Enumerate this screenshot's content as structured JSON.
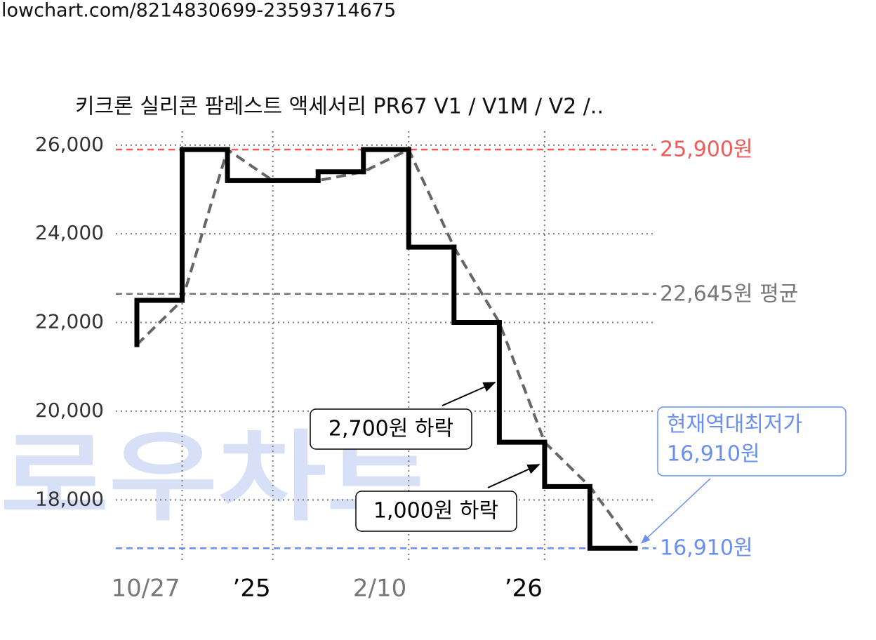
{
  "url": "lowchart.com/8214830699-23593714675",
  "watermark": "로우차트",
  "chart_data": {
    "type": "step",
    "title": "키크론 실리콘 팜레스트 액세서리 PR67 V1 / V1M / V2 /..",
    "x": [
      0,
      1,
      2,
      3,
      4,
      5,
      6,
      7,
      8,
      9,
      10,
      11
    ],
    "series": [
      {
        "color": "#000000",
        "trend_color": "#666666",
        "values": [
          21500,
          22500,
          25900,
          25200,
          25200,
          25400,
          25900,
          23700,
          22000,
          19300,
          18300,
          16910
        ]
      }
    ],
    "xlim": [
      0,
      11
    ],
    "xticks": [
      {
        "value": 1,
        "label": "10/27"
      },
      {
        "value": 3,
        "label": "’25"
      },
      {
        "value": 6,
        "label": "2/10"
      },
      {
        "value": 9,
        "label": "’26"
      }
    ],
    "xtick_colors": [
      "#777777",
      "#000000",
      "#777777",
      "#000000"
    ],
    "ylim": [
      16000,
      27000
    ],
    "yticks": [
      {
        "value": 18000,
        "label": "18,000"
      },
      {
        "value": 20000,
        "label": "20,000"
      },
      {
        "value": 22000,
        "label": "22,000"
      },
      {
        "value": 24000,
        "label": "24,000"
      },
      {
        "value": 26000,
        "label": "26,000"
      }
    ],
    "grid": true,
    "reference_lines": [
      {
        "value": 25900,
        "label": "25,900원",
        "color": "#f05a5a"
      },
      {
        "value": 22645,
        "label": "22,645원 평균",
        "color": "#777777"
      },
      {
        "value": 16910,
        "label": "16,910원",
        "color": "#6a8ff0"
      }
    ],
    "annotations": [
      "2,700원 하락",
      "1,000원 하락"
    ],
    "callout": [
      "현재역대최저가",
      "16,910원"
    ]
  }
}
